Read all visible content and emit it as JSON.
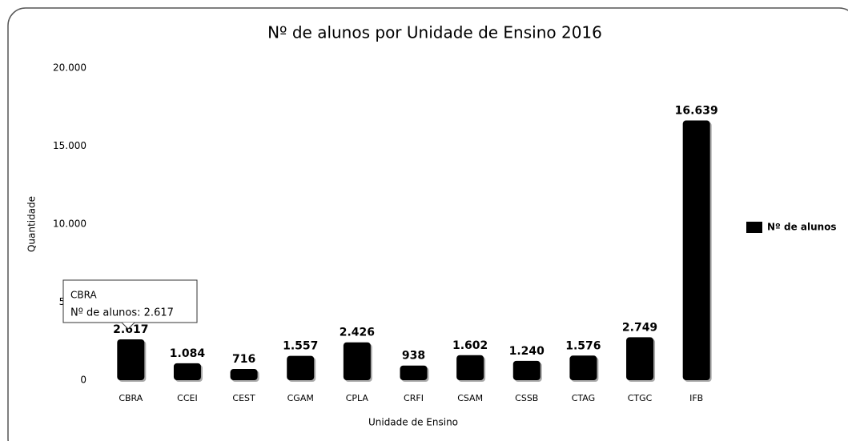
{
  "chart_data": {
    "type": "bar",
    "title": "Nº de alunos por Unidade de Ensino 2016",
    "x_label": "Unidade de Ensino",
    "y_label": "Quantidade",
    "categories": [
      "CBRA",
      "CCEI",
      "CEST",
      "CGAM",
      "CPLA",
      "CRFI",
      "CSAM",
      "CSSB",
      "CTAG",
      "CTGC",
      "IFB"
    ],
    "series": [
      {
        "name": "Nº de alunos",
        "color": "#000000",
        "values": [
          2617,
          1084,
          716,
          1557,
          2426,
          938,
          1602,
          1240,
          1576,
          2749,
          16639
        ],
        "value_labels": [
          "2.617",
          "1.084",
          "716",
          "1.557",
          "2.426",
          "938",
          "1.602",
          "1.240",
          "1.576",
          "2.749",
          "16.639"
        ]
      }
    ],
    "ylim": [
      0,
      20000
    ],
    "yticks": [
      0,
      {
        "value": 5000,
        "label": "5.000"
      },
      {
        "value": 10000,
        "label": "10.000"
      },
      {
        "value": 15000,
        "label": "15.000"
      },
      {
        "value": 20000,
        "label": "20.000"
      }
    ],
    "legend": "right",
    "tooltip": {
      "title": "CBRA",
      "body": "Nº de alunos: 2.617"
    }
  }
}
